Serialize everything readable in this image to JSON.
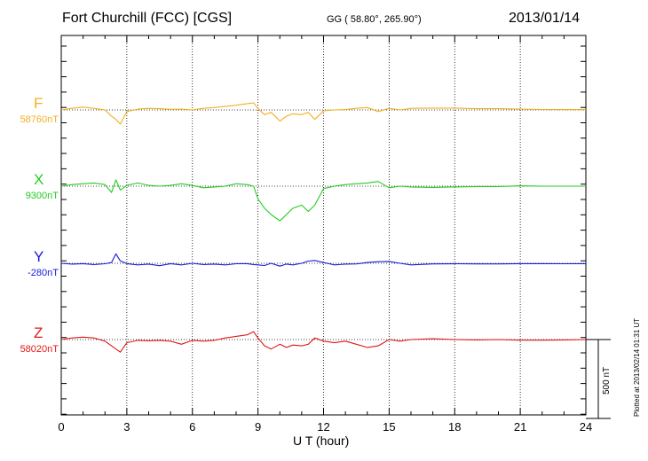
{
  "header": {
    "station": "Fort Churchill (FCC)  [CGS]",
    "coords": "GG ( 58.80°, 265.90°)",
    "date": "2013/01/14"
  },
  "footer": {
    "plotted": "Plotted at 2013/02/14 01:31  UT"
  },
  "chart_data": {
    "type": "line",
    "title": "Fort Churchill (FCC)  [CGS]",
    "xlabel": "U T (hour)",
    "ylabel": "",
    "xlim": [
      0,
      24
    ],
    "x_ticks": [
      "0",
      "3",
      "6",
      "9",
      "12",
      "15",
      "18",
      "21",
      "24"
    ],
    "grid": true,
    "scale_bar_nT": 500,
    "scale_bar_label": "500 nT",
    "x": [
      0,
      0.5,
      1,
      1.5,
      2,
      2.3,
      2.5,
      2.7,
      3,
      3.5,
      4,
      4.5,
      5,
      5.5,
      6,
      6.5,
      7,
      7.5,
      8,
      8.5,
      8.8,
      9,
      9.3,
      9.6,
      10,
      10.3,
      10.6,
      11,
      11.3,
      11.6,
      12,
      12.5,
      13,
      13.5,
      14,
      14.5,
      15,
      15.5,
      16,
      17,
      18,
      19,
      20,
      21,
      22,
      23,
      24
    ],
    "series": [
      {
        "name": "F",
        "baseline_label": "58760nT",
        "color": "#f0b020",
        "values": [
          58760,
          58770,
          58778,
          58770,
          58760,
          58720,
          58700,
          58670,
          58750,
          58765,
          58770,
          58768,
          58764,
          58765,
          58760,
          58770,
          58775,
          58782,
          58790,
          58800,
          58805,
          58770,
          58730,
          58745,
          58690,
          58720,
          58735,
          58730,
          58745,
          58700,
          58755,
          58760,
          58762,
          58770,
          58775,
          58750,
          58770,
          58760,
          58770,
          58772,
          58772,
          58768,
          58768,
          58765,
          58763,
          58762,
          58762
        ]
      },
      {
        "name": "X",
        "baseline_label": "9300nT",
        "color": "#22cc22",
        "values": [
          9300,
          9310,
          9315,
          9320,
          9310,
          9260,
          9340,
          9275,
          9305,
          9320,
          9305,
          9300,
          9305,
          9315,
          9305,
          9290,
          9295,
          9300,
          9315,
          9310,
          9300,
          9220,
          9160,
          9120,
          9080,
          9120,
          9160,
          9180,
          9140,
          9180,
          9285,
          9300,
          9310,
          9315,
          9320,
          9330,
          9290,
          9300,
          9295,
          9292,
          9295,
          9298,
          9298,
          9302,
          9300,
          9300,
          9300
        ]
      },
      {
        "name": "Y",
        "baseline_label": "-280nT",
        "color": "#1a1ad8",
        "values": [
          -280,
          -285,
          -282,
          -288,
          -283,
          -275,
          -220,
          -265,
          -282,
          -290,
          -285,
          -295,
          -282,
          -290,
          -280,
          -288,
          -285,
          -290,
          -283,
          -282,
          -288,
          -290,
          -294,
          -280,
          -298,
          -285,
          -290,
          -280,
          -266,
          -262,
          -275,
          -290,
          -285,
          -284,
          -275,
          -270,
          -268,
          -280,
          -290,
          -284,
          -283,
          -284,
          -284,
          -282,
          -282,
          -283,
          -282
        ]
      },
      {
        "name": "Z",
        "baseline_label": "58020nT",
        "color": "#e01818",
        "values": [
          58020,
          58030,
          58035,
          58030,
          58010,
          57980,
          57960,
          57940,
          58000,
          58015,
          58012,
          58015,
          58010,
          57990,
          58015,
          58010,
          58015,
          58030,
          58040,
          58050,
          58070,
          58030,
          57980,
          57960,
          57990,
          57970,
          57985,
          57980,
          57990,
          58030,
          58010,
          58000,
          58010,
          57990,
          57970,
          57980,
          58020,
          58010,
          58020,
          58025,
          58020,
          58018,
          58020,
          58016,
          58016,
          58018,
          58020
        ]
      }
    ]
  }
}
